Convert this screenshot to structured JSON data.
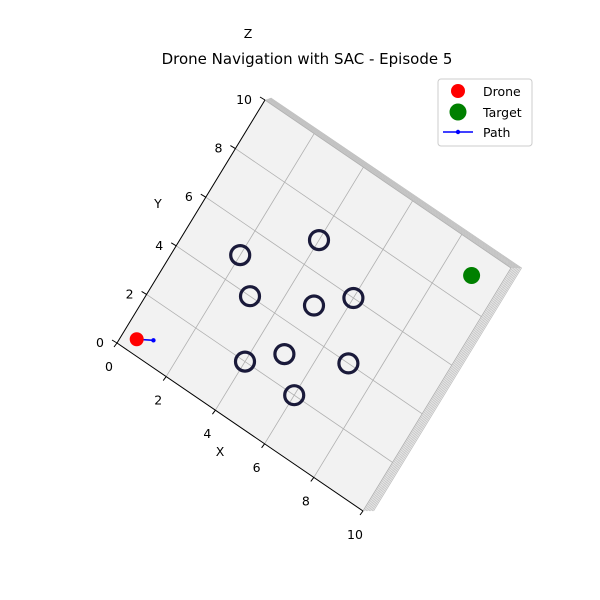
{
  "chart_data": {
    "type": "scatter",
    "projection": "3d-top-view",
    "title": "Drone Navigation with SAC - Episode 5",
    "xlabel": "X",
    "ylabel": "Y",
    "zlabel": "Z",
    "xlim": [
      0,
      10
    ],
    "ylim": [
      0,
      10
    ],
    "x_ticks": [
      "0",
      "2",
      "4",
      "6",
      "8",
      "10"
    ],
    "y_ticks": [
      "0",
      "2",
      "4",
      "6",
      "8",
      "10"
    ],
    "grid": true,
    "legend_position": "top-right",
    "legend": [
      {
        "label": "Drone",
        "marker": "circle",
        "color": "#ff0000"
      },
      {
        "label": "Target",
        "marker": "circle",
        "color": "#008000"
      },
      {
        "label": "Path",
        "marker": "line-dot",
        "color": "#0000ff"
      }
    ],
    "drone": {
      "x": 0.5,
      "y": 0.5,
      "color": "#ff0000"
    },
    "target": {
      "x": 9.0,
      "y": 9.0,
      "color": "#008000"
    },
    "path": {
      "color": "#0000ff",
      "points": [
        [
          0.5,
          0.5
        ],
        [
          1.0,
          0.8
        ]
      ]
    },
    "obstacles": {
      "color": "#1a1a3a",
      "points": [
        [
          3,
          4
        ],
        [
          6,
          6
        ],
        [
          2,
          5
        ],
        [
          4,
          7
        ],
        [
          5,
          5
        ],
        [
          7,
          4
        ],
        [
          5,
          3
        ],
        [
          6,
          2
        ],
        [
          4,
          2
        ]
      ]
    }
  }
}
